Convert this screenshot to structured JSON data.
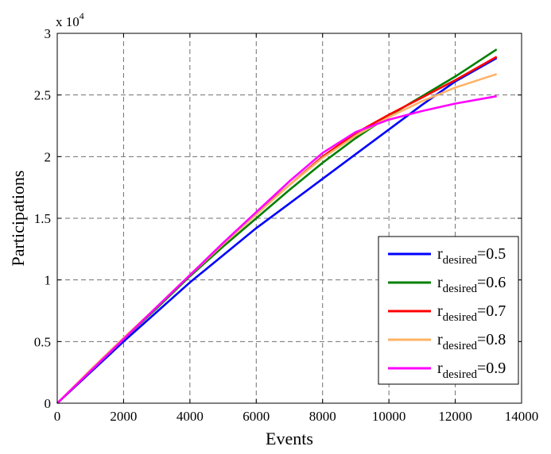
{
  "chart_data": {
    "type": "line",
    "xlabel": "Events",
    "ylabel": "Participations",
    "y_exponent_label": {
      "base": "x 10",
      "exp": "4"
    },
    "xlim": [
      0,
      14000
    ],
    "ylim": [
      0,
      3
    ],
    "x_ticks": [
      0,
      2000,
      4000,
      6000,
      8000,
      10000,
      12000,
      14000
    ],
    "x_tick_labels": [
      "0",
      "2000",
      "4000",
      "6000",
      "8000",
      "10000",
      "12000",
      "14000"
    ],
    "y_ticks": [
      0,
      0.5,
      1,
      1.5,
      2,
      2.5,
      3
    ],
    "y_tick_labels": [
      "0",
      "0.5",
      "1",
      "1.5",
      "2",
      "2.5",
      "3"
    ],
    "grid": true,
    "legend_position": "bottom-right",
    "series": [
      {
        "name": "r_desired=0.5",
        "label_base": "r",
        "label_sub": "desired",
        "label_tail": "=0.5",
        "color": "#0000ff",
        "x": [
          0,
          1000,
          2000,
          3000,
          4000,
          5000,
          6000,
          7000,
          8000,
          9000,
          10000,
          11000,
          12000,
          13250
        ],
        "y": [
          0,
          0.25,
          0.5,
          0.74,
          0.98,
          1.2,
          1.42,
          1.62,
          1.82,
          2.02,
          2.22,
          2.42,
          2.61,
          2.8
        ]
      },
      {
        "name": "r_desired=0.6",
        "label_base": "r",
        "label_sub": "desired",
        "label_tail": "=0.6",
        "color": "#008000",
        "x": [
          0,
          1000,
          2000,
          3000,
          4000,
          5000,
          6000,
          7000,
          8000,
          9000,
          10000,
          11000,
          12000,
          13250
        ],
        "y": [
          0,
          0.26,
          0.52,
          0.77,
          1.03,
          1.27,
          1.5,
          1.73,
          1.95,
          2.15,
          2.33,
          2.49,
          2.65,
          2.87
        ]
      },
      {
        "name": "r_desired=0.7",
        "label_base": "r",
        "label_sub": "desired",
        "label_tail": "=0.7",
        "color": "#ff0000",
        "x": [
          0,
          1000,
          2000,
          3000,
          4000,
          5000,
          6000,
          7000,
          8000,
          9000,
          10000,
          11000,
          12000,
          13250
        ],
        "y": [
          0,
          0.26,
          0.52,
          0.78,
          1.04,
          1.29,
          1.54,
          1.77,
          2.0,
          2.19,
          2.34,
          2.48,
          2.62,
          2.81
        ]
      },
      {
        "name": "r_desired=0.8",
        "label_base": "r",
        "label_sub": "desired",
        "label_tail": "=0.8",
        "color": "#ffb266",
        "x": [
          0,
          1000,
          2000,
          3000,
          4000,
          5000,
          6000,
          7000,
          8000,
          9000,
          10000,
          11000,
          12000,
          13250
        ],
        "y": [
          0,
          0.27,
          0.53,
          0.78,
          1.04,
          1.29,
          1.53,
          1.77,
          1.99,
          2.17,
          2.32,
          2.45,
          2.56,
          2.67
        ]
      },
      {
        "name": "r_desired=0.9",
        "label_base": "r",
        "label_sub": "desired",
        "label_tail": "=0.9",
        "color": "#ff00ff",
        "x": [
          0,
          1000,
          2000,
          3000,
          4000,
          5000,
          6000,
          7000,
          8000,
          9000,
          10000,
          11000,
          12000,
          13250
        ],
        "y": [
          0,
          0.26,
          0.52,
          0.78,
          1.04,
          1.3,
          1.55,
          1.8,
          2.03,
          2.2,
          2.3,
          2.37,
          2.43,
          2.49
        ]
      }
    ]
  }
}
